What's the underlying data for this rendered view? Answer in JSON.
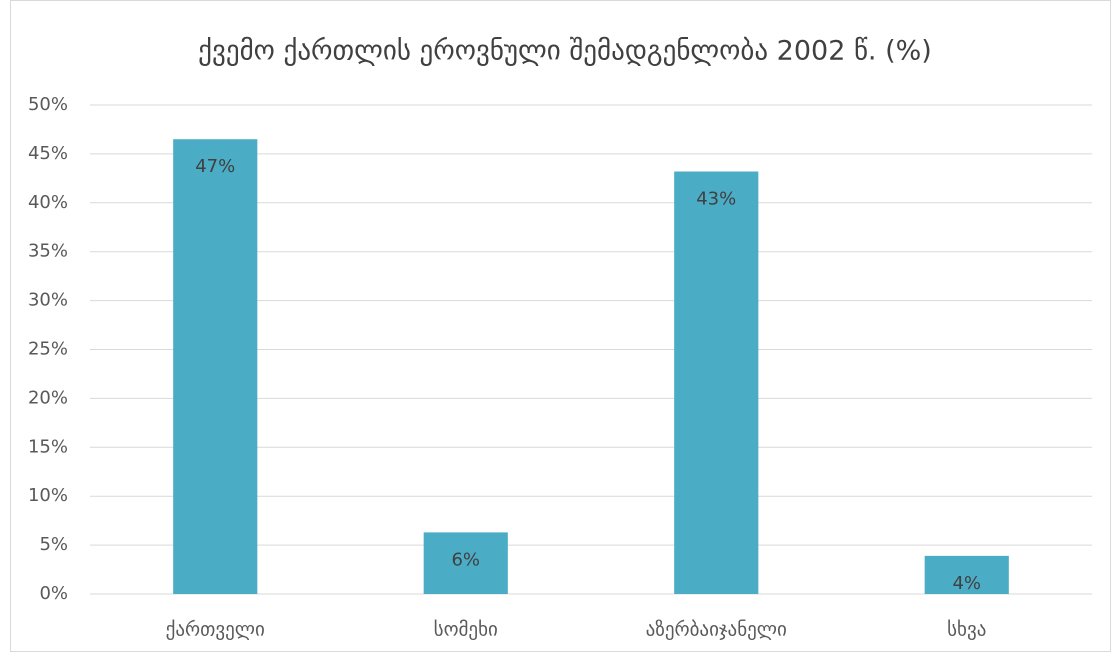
{
  "chart_data": {
    "type": "bar",
    "title": "ქვემო ქართლის ეროვნული შემადგენლობა 2002 წ. (%)",
    "categories": [
      "ქართველი",
      "სომეხი",
      "აზერბაიჯანელი",
      "სხვა"
    ],
    "values": [
      46.5,
      6.3,
      43.2,
      3.9
    ],
    "value_labels": [
      "47%",
      "6%",
      "43%",
      "4%"
    ],
    "color": "#4bacc6",
    "ylim": [
      0,
      50
    ],
    "yticks": [
      {
        "value": 0,
        "label": "0%"
      },
      {
        "value": 5,
        "label": "5%"
      },
      {
        "value": 10,
        "label": "10%"
      },
      {
        "value": 15,
        "label": "15%"
      },
      {
        "value": 20,
        "label": "20%"
      },
      {
        "value": 25,
        "label": "25%"
      },
      {
        "value": 30,
        "label": "30%"
      },
      {
        "value": 35,
        "label": "35%"
      },
      {
        "value": 40,
        "label": "40%"
      },
      {
        "value": 45,
        "label": "45%"
      },
      {
        "value": 50,
        "label": "50%"
      }
    ],
    "grid": true
  }
}
